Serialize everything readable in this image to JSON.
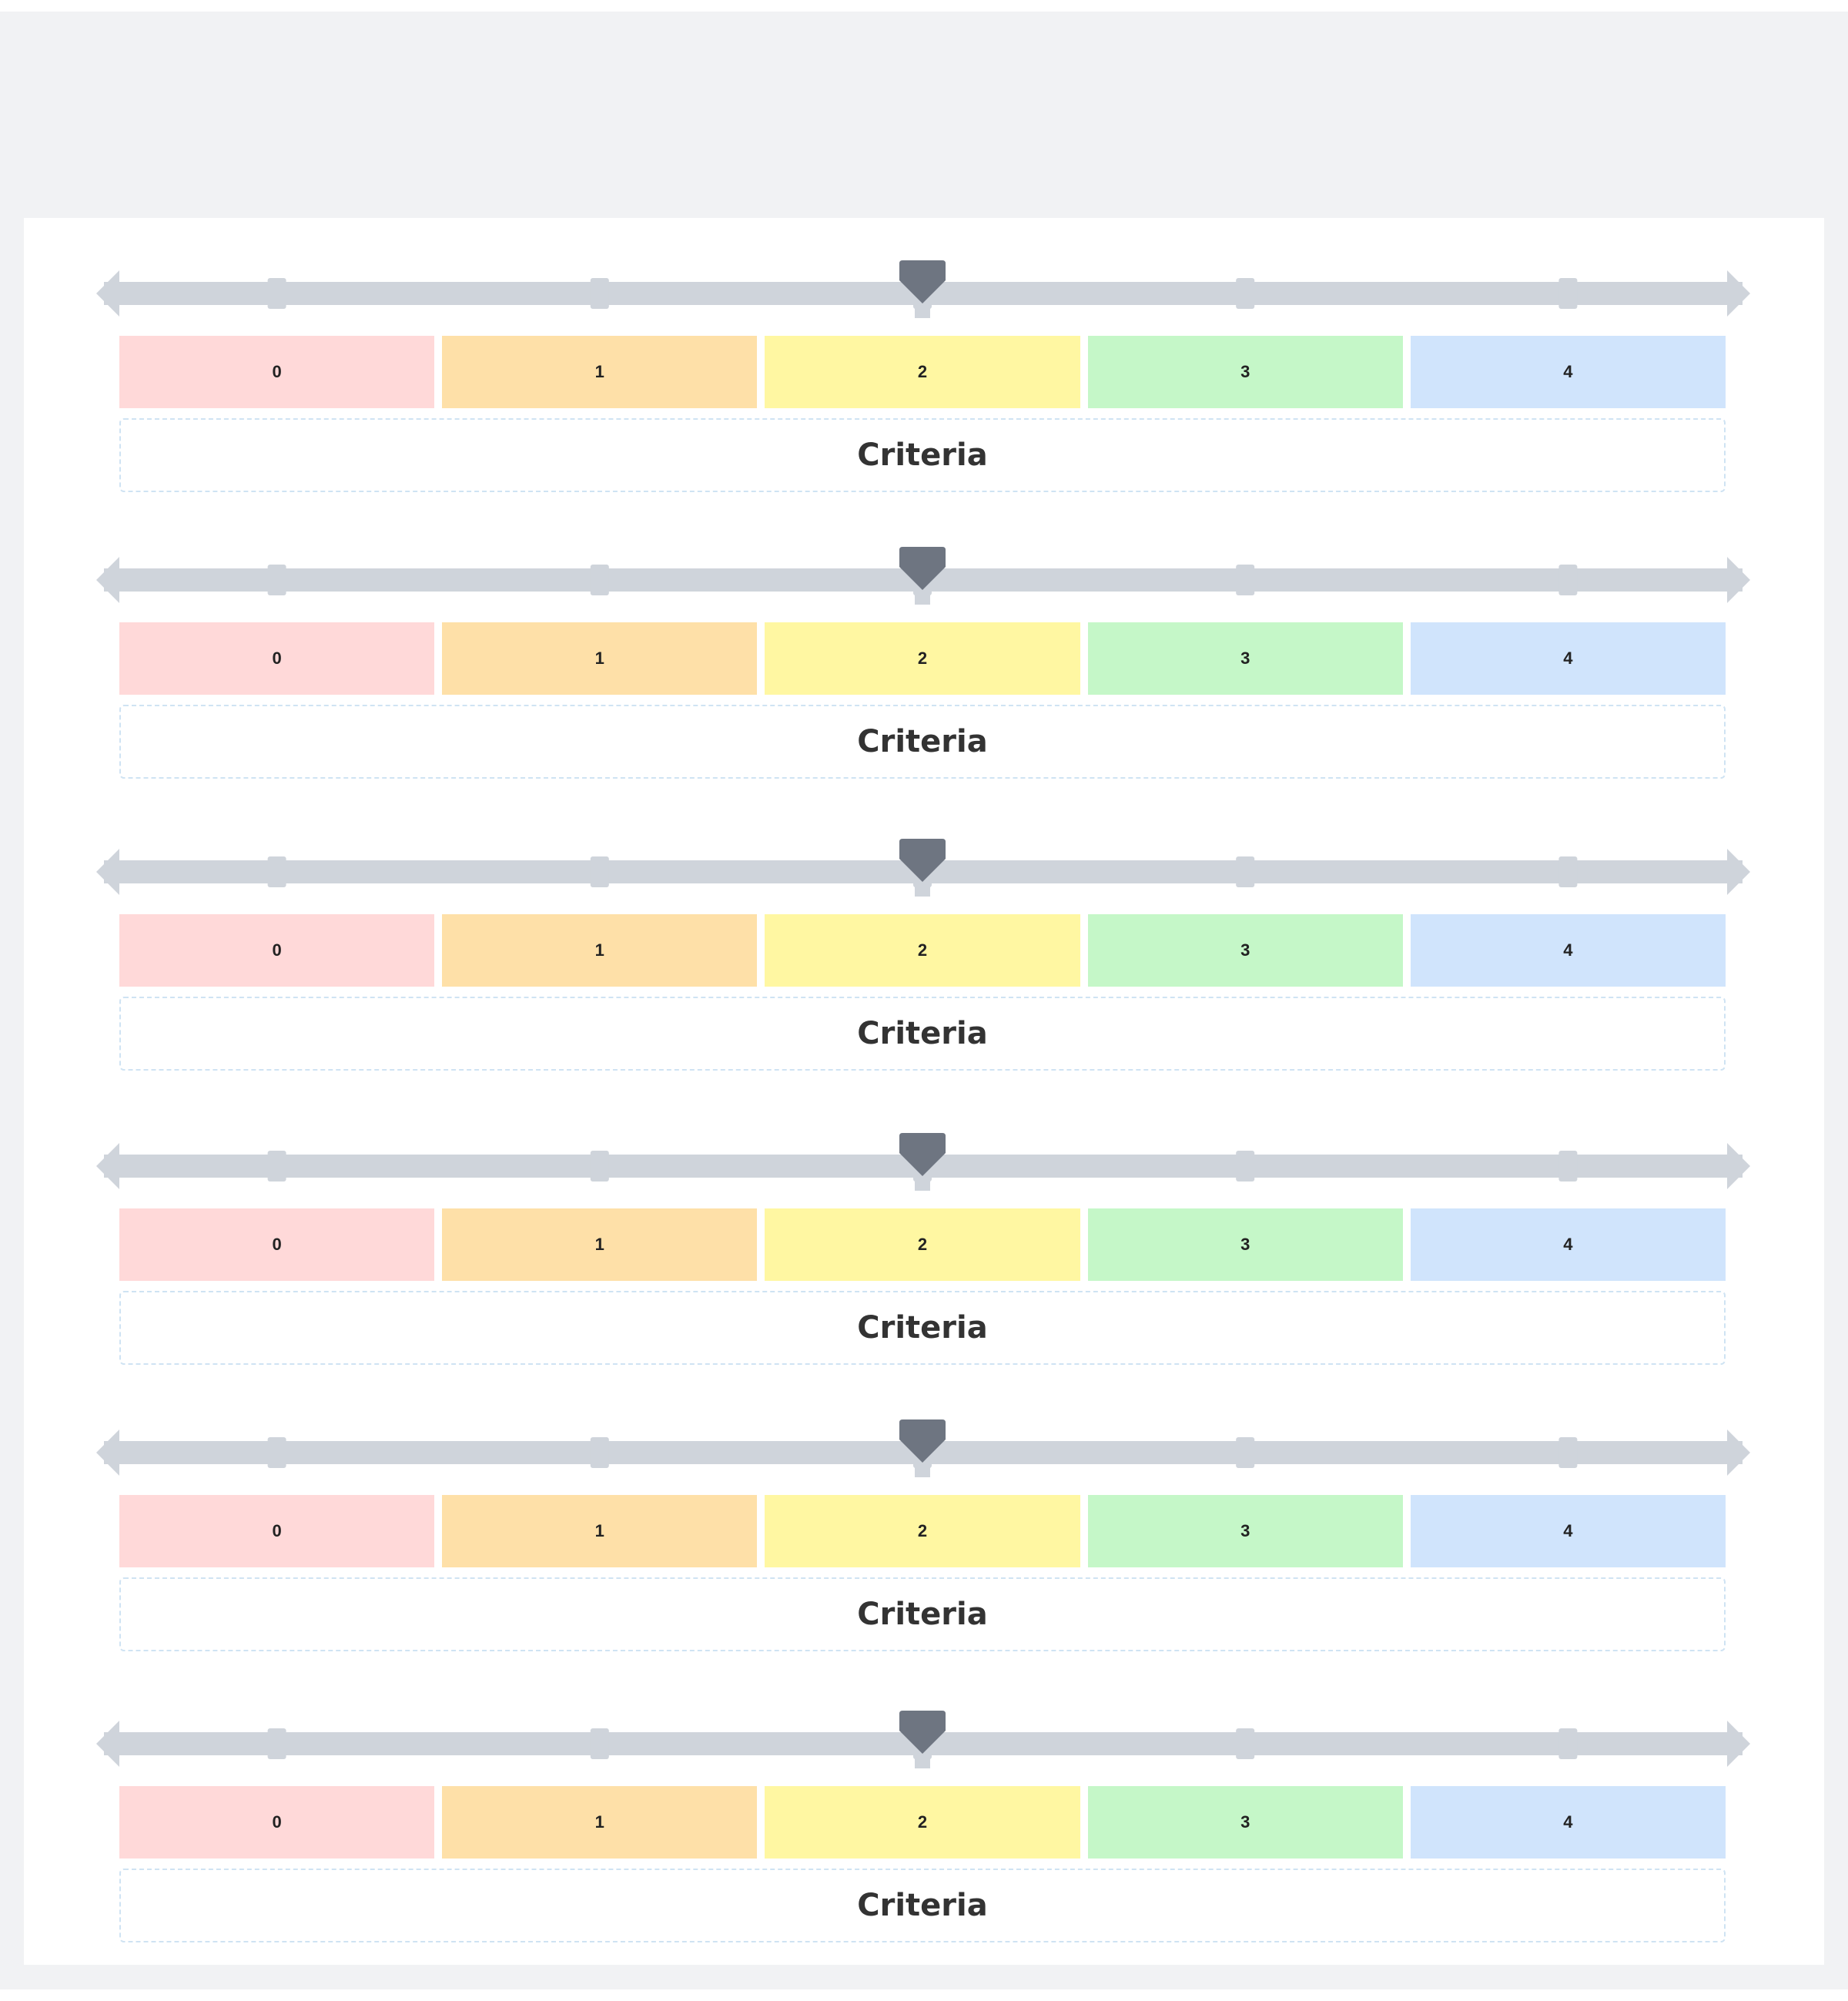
{
  "colors": {
    "segment_bg": [
      "#ffd9d9",
      "#fee0a8",
      "#fff7a2",
      "#c5f7c8",
      "#d0e4fc"
    ],
    "track": "#cfd4db",
    "handle": "#6e7581"
  },
  "icons": {
    "handle": "slider-handle-icon",
    "left_arrow": "arrow-left-icon",
    "right_arrow": "arrow-right-icon"
  },
  "scales": [
    {
      "options": [
        "0",
        "1",
        "2",
        "3",
        "4"
      ],
      "selected_index": 2,
      "criteria_label": "Criteria"
    },
    {
      "options": [
        "0",
        "1",
        "2",
        "3",
        "4"
      ],
      "selected_index": 2,
      "criteria_label": "Criteria"
    },
    {
      "options": [
        "0",
        "1",
        "2",
        "3",
        "4"
      ],
      "selected_index": 2,
      "criteria_label": "Criteria"
    },
    {
      "options": [
        "0",
        "1",
        "2",
        "3",
        "4"
      ],
      "selected_index": 2,
      "criteria_label": "Criteria"
    },
    {
      "options": [
        "0",
        "1",
        "2",
        "3",
        "4"
      ],
      "selected_index": 2,
      "criteria_label": "Criteria"
    },
    {
      "options": [
        "0",
        "1",
        "2",
        "3",
        "4"
      ],
      "selected_index": 2,
      "criteria_label": "Criteria"
    }
  ]
}
